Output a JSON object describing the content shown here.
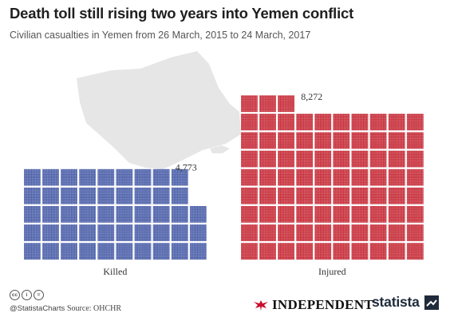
{
  "header": {
    "title": "Death toll still rising two years into Yemen conflict",
    "subtitle": "Civilian casualties in Yemen from 26 March, 2015 to 24 March, 2017"
  },
  "chart_data": {
    "type": "waffle",
    "series": [
      {
        "name": "Killed",
        "value": 4773,
        "value_label": "4,773",
        "color": "#4a5ea8"
      },
      {
        "name": "Injured",
        "value": 8272,
        "value_label": "8,272",
        "color": "#c62b37"
      }
    ]
  },
  "footer": {
    "handle": "@StatistaCharts",
    "source": "Source: OHCHR",
    "license_icons": [
      "cc",
      "i",
      "="
    ],
    "partner": "INDEPENDENT",
    "brand": "statista"
  }
}
